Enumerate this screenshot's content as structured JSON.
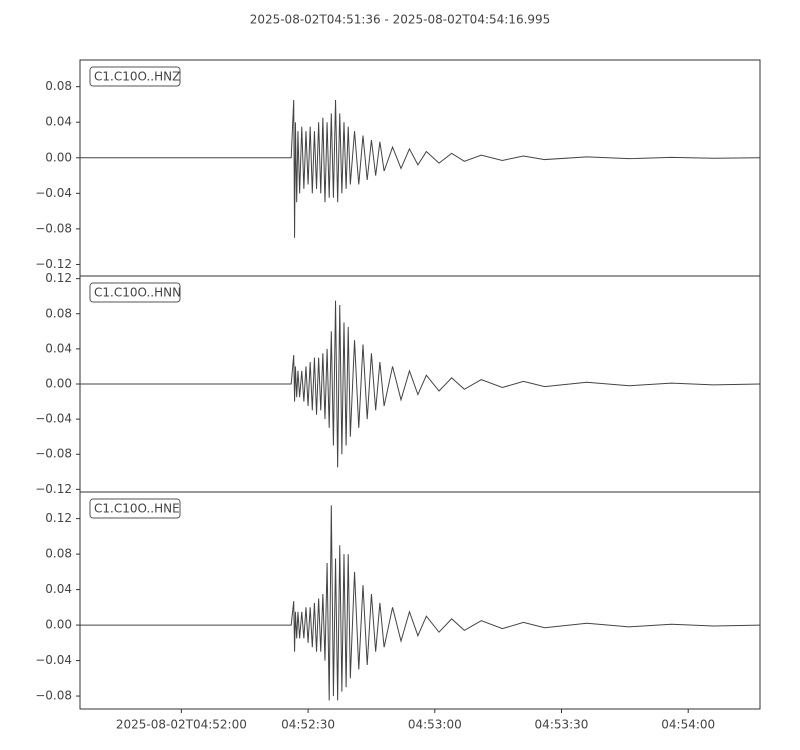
{
  "title": "2025-08-02T04:51:36  -  2025-08-02T04:54:16.995",
  "chart_data": [
    {
      "type": "line",
      "label": "C1.C10O..HNZ",
      "color": "#444444",
      "x": [
        0,
        50,
        50.6,
        50.8,
        51.0,
        51.3,
        51.6,
        52,
        52.5,
        53,
        53.5,
        54,
        54.5,
        55,
        55.5,
        56,
        56.5,
        57,
        57.5,
        58,
        58.5,
        59,
        59.5,
        60,
        60.5,
        61,
        61.5,
        62,
        62.5,
        63,
        63.5,
        64,
        65,
        66,
        67,
        68,
        69,
        70,
        71,
        72,
        74,
        76,
        78,
        80,
        82,
        85,
        88,
        91,
        95,
        100,
        105,
        110,
        120,
        130,
        140,
        150,
        160.995
      ],
      "values": [
        0,
        0,
        0.065,
        -0.09,
        0.04,
        -0.05,
        0.03,
        -0.04,
        0.035,
        -0.035,
        0.03,
        -0.03,
        0.035,
        -0.04,
        0.03,
        -0.035,
        0.04,
        -0.04,
        0.045,
        -0.05,
        0.04,
        -0.045,
        0.05,
        -0.045,
        0.065,
        -0.05,
        0.05,
        -0.04,
        0.04,
        -0.035,
        0.035,
        -0.03,
        0.03,
        -0.03,
        0.025,
        -0.025,
        0.02,
        -0.02,
        0.018,
        -0.015,
        0.012,
        -0.012,
        0.01,
        -0.008,
        0.007,
        -0.006,
        0.005,
        -0.004,
        0.003,
        -0.003,
        0.002,
        -0.002,
        0.001,
        -0.001,
        0.0005,
        -0.0005,
        0
      ],
      "xlim": [
        0,
        160.995
      ],
      "ylim": [
        -0.133,
        0.11
      ],
      "yticks": [
        {
          "value": -0.12,
          "label": "−0.12"
        },
        {
          "value": -0.08,
          "label": "−0.08"
        },
        {
          "value": -0.04,
          "label": "−0.04"
        },
        {
          "value": 0,
          "label": "0.00"
        },
        0.04,
        0.08
      ]
    },
    {
      "type": "line",
      "label": "C1.C10O..HNN",
      "color": "#444444",
      "x": [
        0,
        50,
        50.6,
        50.8,
        51.0,
        51.3,
        51.6,
        52,
        52.5,
        53,
        53.5,
        54,
        54.5,
        55,
        55.5,
        56,
        56.5,
        57,
        57.5,
        58,
        58.5,
        59,
        59.5,
        60,
        60.5,
        61,
        61.5,
        62,
        62.5,
        63,
        63.5,
        64,
        65,
        66,
        67,
        68,
        69,
        70,
        71,
        72,
        74,
        76,
        78,
        80,
        82,
        85,
        88,
        91,
        95,
        100,
        105,
        110,
        120,
        130,
        140,
        150,
        160.995
      ],
      "values": [
        0,
        0,
        0.033,
        -0.02,
        0.02,
        -0.015,
        0.015,
        -0.015,
        0.015,
        -0.02,
        0.02,
        -0.025,
        0.025,
        -0.03,
        0.03,
        -0.035,
        0.03,
        -0.03,
        0.035,
        -0.04,
        0.04,
        -0.05,
        0.06,
        -0.07,
        0.095,
        -0.095,
        0.09,
        -0.08,
        0.07,
        -0.07,
        0.065,
        -0.06,
        0.05,
        -0.05,
        0.045,
        -0.04,
        0.035,
        -0.03,
        0.025,
        -0.025,
        0.02,
        -0.018,
        0.015,
        -0.012,
        0.01,
        -0.008,
        0.007,
        -0.006,
        0.005,
        -0.004,
        0.003,
        -0.003,
        0.002,
        -0.002,
        0.001,
        -0.001,
        0
      ],
      "xlim": [
        0,
        160.995
      ],
      "ylim": [
        -0.123,
        0.123
      ],
      "yticks": [
        {
          "value": -0.12,
          "label": "−0.12"
        },
        {
          "value": -0.08,
          "label": "−0.08"
        },
        {
          "value": -0.04,
          "label": "−0.04"
        },
        {
          "value": 0,
          "label": "0.00"
        },
        0.04,
        0.08,
        0.12
      ]
    },
    {
      "type": "line",
      "label": "C1.C10O..HNE",
      "color": "#444444",
      "x": [
        0,
        50,
        50.6,
        50.8,
        51.0,
        51.3,
        51.6,
        52,
        52.5,
        53,
        53.5,
        54,
        54.5,
        55,
        55.5,
        56,
        56.5,
        57,
        57.5,
        58,
        58.5,
        59,
        59.5,
        60,
        60.5,
        61,
        61.5,
        62,
        62.5,
        63,
        63.5,
        64,
        65,
        66,
        67,
        68,
        69,
        70,
        71,
        72,
        74,
        76,
        78,
        80,
        82,
        85,
        88,
        91,
        95,
        100,
        105,
        110,
        120,
        130,
        140,
        150,
        160.995
      ],
      "values": [
        0,
        0,
        0.027,
        -0.03,
        0.015,
        -0.015,
        0.015,
        -0.015,
        0.015,
        -0.015,
        0.02,
        -0.02,
        0.02,
        -0.025,
        0.025,
        -0.03,
        0.03,
        -0.03,
        0.035,
        -0.04,
        0.07,
        -0.085,
        0.135,
        -0.08,
        0.075,
        -0.085,
        0.09,
        -0.075,
        0.08,
        -0.07,
        0.08,
        -0.06,
        0.06,
        -0.05,
        0.045,
        -0.045,
        0.035,
        -0.03,
        0.025,
        -0.025,
        0.02,
        -0.018,
        0.015,
        -0.012,
        0.01,
        -0.008,
        0.007,
        -0.006,
        0.005,
        -0.004,
        0.003,
        -0.003,
        0.002,
        -0.002,
        0.001,
        -0.001,
        0
      ],
      "xlim": [
        0,
        160.995
      ],
      "ylim": [
        -0.0946,
        0.15
      ],
      "yticks": [
        {
          "value": -0.08,
          "label": "−0.08"
        },
        {
          "value": -0.04,
          "label": "−0.04"
        },
        {
          "value": 0,
          "label": "0.00"
        },
        0.04,
        0.08,
        0.12
      ],
      "xticks": [
        {
          "value": 24,
          "label": "2025-08-02T04:52:00"
        },
        {
          "value": 54,
          "label": "04:52:30"
        },
        {
          "value": 84,
          "label": "04:53:00"
        },
        {
          "value": 114,
          "label": "04:53:30"
        },
        {
          "value": 144,
          "label": "04:54:00"
        }
      ]
    }
  ]
}
